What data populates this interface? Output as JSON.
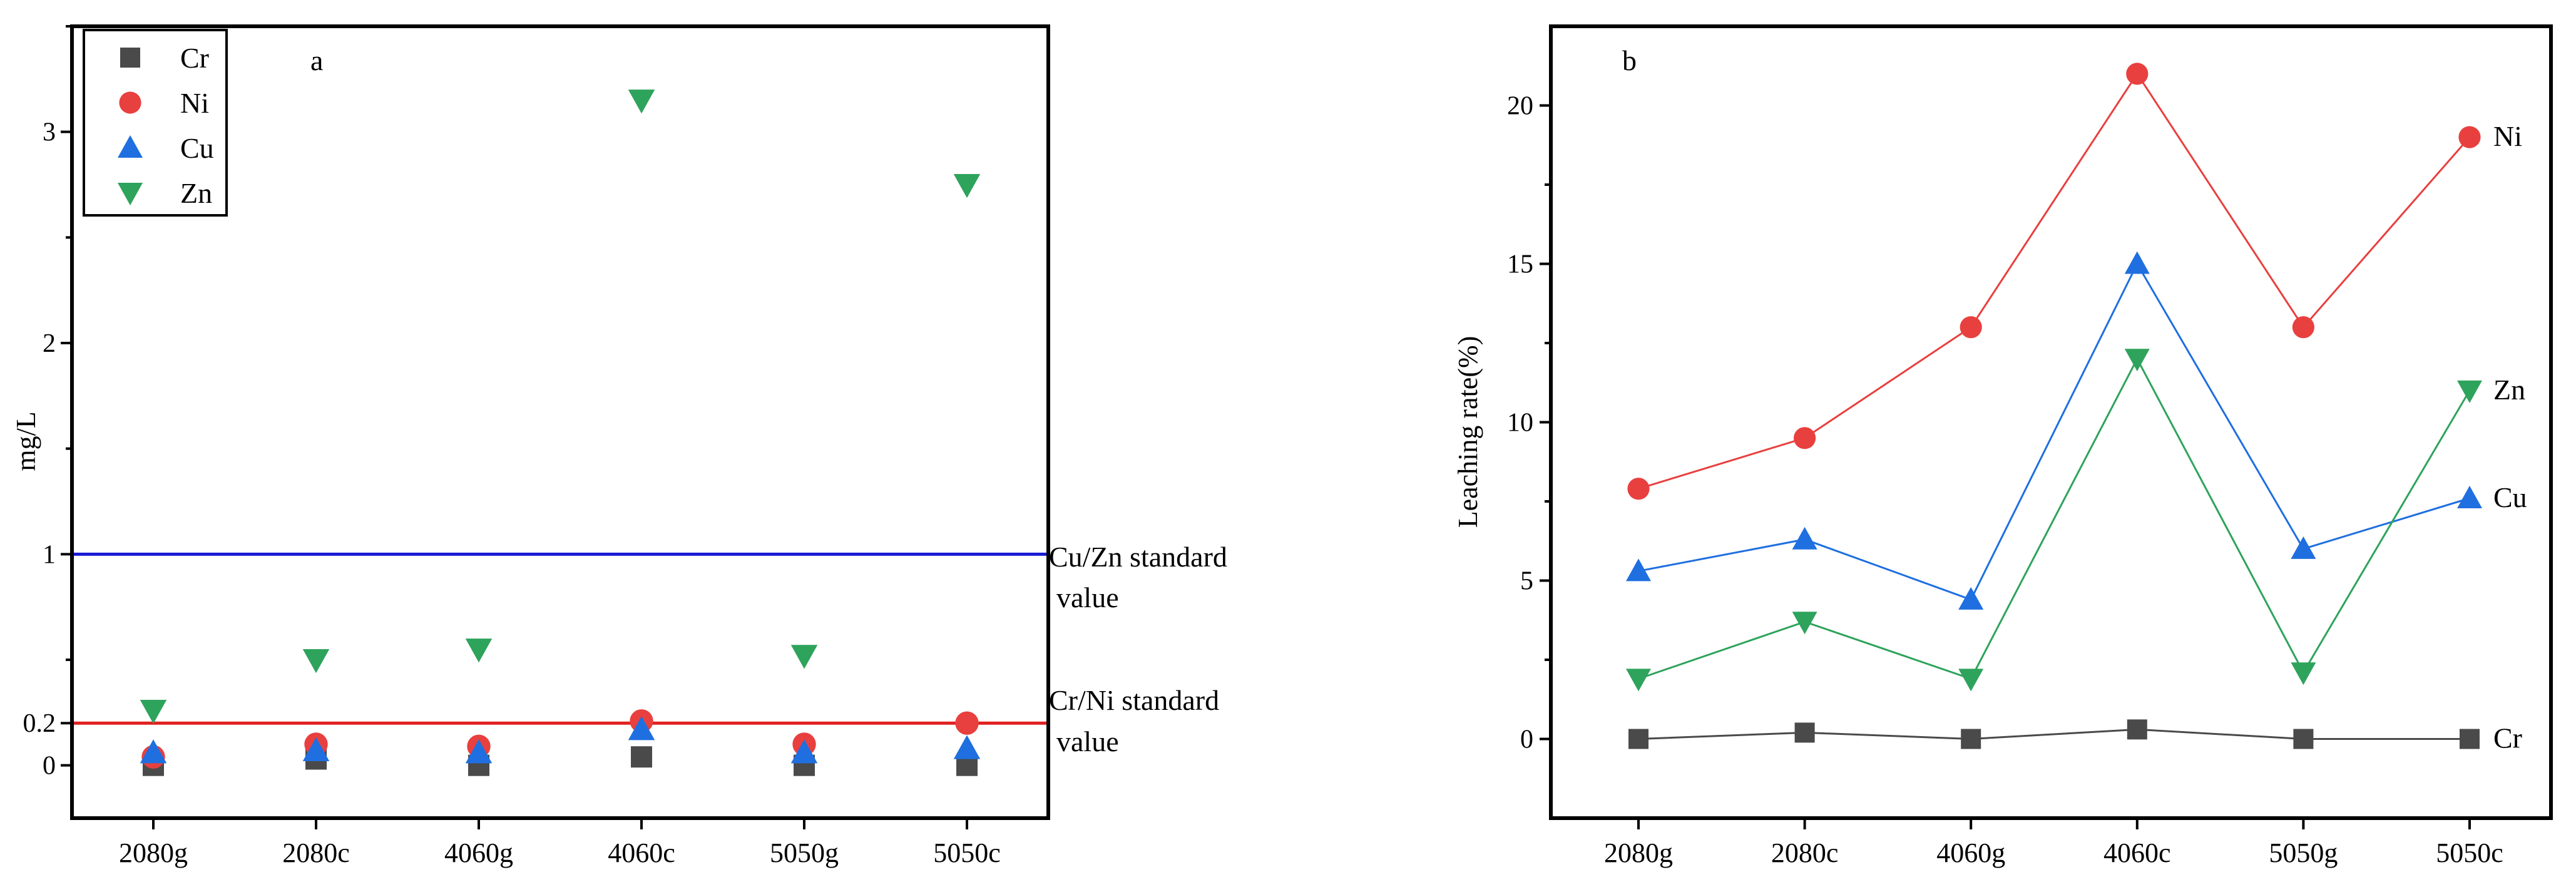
{
  "categories": [
    "2080g",
    "2080c",
    "4060g",
    "4060c",
    "5050g",
    "5050c"
  ],
  "colors": {
    "Cr": "#4a4a4a",
    "Ni": "#e8403f",
    "Cu": "#1f6fe0",
    "Zn": "#2ea35c",
    "blue_line": "#1a1ad6",
    "red_line": "#e02020"
  },
  "chart_data": [
    {
      "type": "scatter",
      "panel_label": "a",
      "ylabel": "mg/L",
      "categories": [
        "2080g",
        "2080c",
        "4060g",
        "4060c",
        "5050g",
        "5050c"
      ],
      "yticks": [
        "0",
        "0.2",
        "1",
        "2",
        "3"
      ],
      "ylim": [
        -0.25,
        3.5
      ],
      "legend": [
        "Cr",
        "Ni",
        "Cu",
        "Zn"
      ],
      "legend_placement": "top-left",
      "series": [
        {
          "name": "Cr",
          "marker": "square",
          "values": [
            0.0,
            0.03,
            0.0,
            0.04,
            0.0,
            0.0
          ]
        },
        {
          "name": "Ni",
          "marker": "circle",
          "values": [
            0.04,
            0.1,
            0.09,
            0.21,
            0.1,
            0.2
          ]
        },
        {
          "name": "Cu",
          "marker": "triangle-up",
          "values": [
            0.06,
            0.07,
            0.06,
            0.17,
            0.06,
            0.08
          ]
        },
        {
          "name": "Zn",
          "marker": "triangle-down",
          "values": [
            0.26,
            0.5,
            0.55,
            3.15,
            0.52,
            2.75
          ]
        }
      ],
      "reference_lines": [
        {
          "value": 1,
          "label_line1": "Cu/Zn standard",
          "label_line2": "value",
          "color": "#1a1ad6"
        },
        {
          "value": 0.2,
          "label_line1": "Cr/Ni standard",
          "label_line2": "value",
          "color": "#e02020"
        }
      ]
    },
    {
      "type": "line",
      "panel_label": "b",
      "ylabel": "Leaching rate(%)",
      "categories": [
        "2080g",
        "2080c",
        "4060g",
        "4060c",
        "5050g",
        "5050c"
      ],
      "yticks": [
        "0",
        "5",
        "10",
        "15",
        "20"
      ],
      "ylim": [
        -2.5,
        22.5
      ],
      "series": [
        {
          "name": "Cr",
          "marker": "square",
          "values": [
            0.0,
            0.2,
            0.0,
            0.3,
            0.0,
            0.0
          ]
        },
        {
          "name": "Ni",
          "marker": "circle",
          "values": [
            7.9,
            9.5,
            13.0,
            21.0,
            13.0,
            19.0
          ]
        },
        {
          "name": "Cu",
          "marker": "triangle-up",
          "values": [
            5.3,
            6.3,
            4.4,
            15.0,
            6.0,
            7.6
          ]
        },
        {
          "name": "Zn",
          "marker": "triangle-down",
          "values": [
            1.9,
            3.7,
            1.9,
            12.0,
            2.1,
            11.0
          ]
        }
      ]
    }
  ]
}
